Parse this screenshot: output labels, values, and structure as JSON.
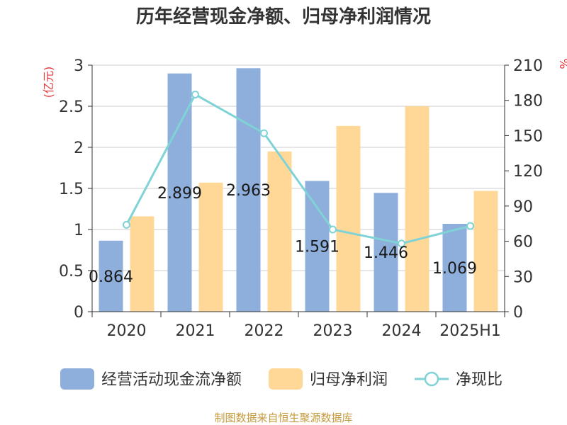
{
  "chart_data": {
    "type": "bar",
    "title": "历年经营现金净额、归母净利润情况",
    "categories": [
      "2020",
      "2021",
      "2022",
      "2023",
      "2024",
      "2025H1"
    ],
    "left_axis": {
      "unit": "(亿元)",
      "ylim": [
        0,
        3
      ],
      "ticks": [
        "0",
        "0.5",
        "1",
        "1.5",
        "2",
        "2.5",
        "3"
      ]
    },
    "right_axis": {
      "unit": "%",
      "ylim": [
        0,
        210
      ],
      "ticks": [
        "0",
        "30",
        "60",
        "90",
        "120",
        "150",
        "180",
        "210"
      ]
    },
    "series": [
      {
        "name": "经营活动现金流净额",
        "type": "bar",
        "axis": "left",
        "color": "#8eaedb",
        "values": [
          0.864,
          2.899,
          2.963,
          1.591,
          1.446,
          1.069
        ],
        "labels": [
          "0.864",
          "2.899",
          "2.963",
          "1.591",
          "1.446",
          "1.069"
        ]
      },
      {
        "name": "归母净利润",
        "type": "bar",
        "axis": "left",
        "color": "#ffd898",
        "values": [
          1.16,
          1.57,
          1.95,
          2.26,
          2.5,
          1.47
        ]
      },
      {
        "name": "净现比",
        "type": "line",
        "axis": "right",
        "color": "#7fd3d6",
        "values": [
          74,
          185,
          152,
          70,
          58,
          73
        ]
      }
    ],
    "grid": true,
    "legend": "bottom"
  },
  "source_text": "制图数据来自恒生聚源数据库"
}
